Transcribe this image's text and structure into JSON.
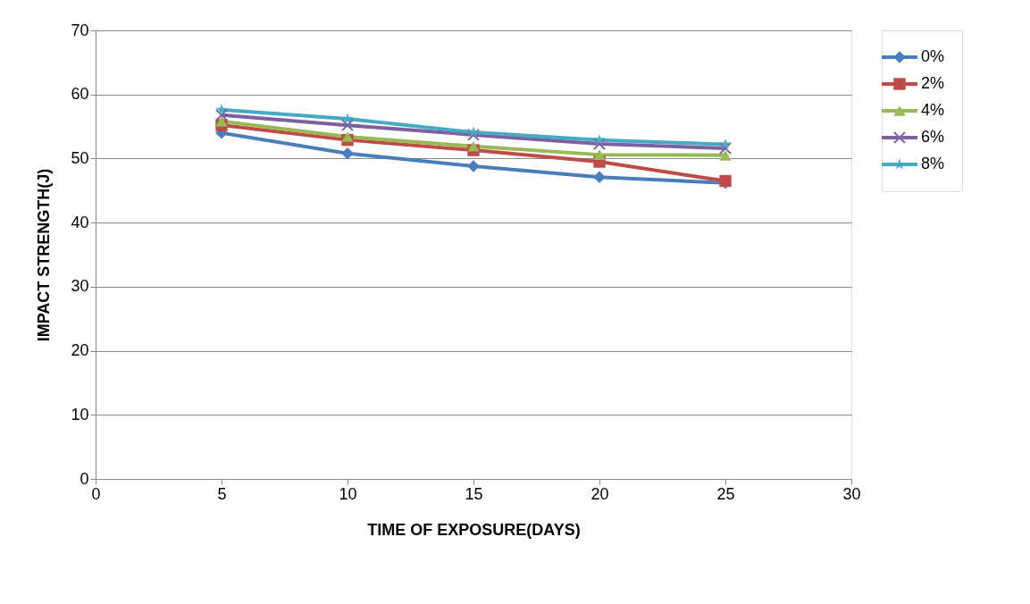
{
  "chart_data": {
    "type": "line",
    "xlabel": "TIME OF EXPOSURE(DAYS)",
    "ylabel": "IMPACT STRENGTH(J)",
    "x": [
      5,
      10,
      15,
      20,
      25
    ],
    "series": [
      {
        "name": "0%",
        "color": "#4a7ebb",
        "marker": "diamond",
        "values": [
          54.0,
          50.8,
          48.8,
          47.1,
          46.2
        ]
      },
      {
        "name": "2%",
        "color": "#be4b48",
        "marker": "square",
        "values": [
          55.2,
          52.9,
          51.3,
          49.5,
          46.5
        ]
      },
      {
        "name": "4%",
        "color": "#98b954",
        "marker": "triangle",
        "values": [
          55.8,
          53.4,
          51.9,
          50.6,
          50.5
        ]
      },
      {
        "name": "6%",
        "color": "#7d60a0",
        "marker": "cross",
        "values": [
          56.8,
          55.2,
          53.7,
          52.3,
          51.6
        ]
      },
      {
        "name": "8%",
        "color": "#46aac5",
        "marker": "star",
        "values": [
          57.6,
          56.2,
          54.1,
          52.9,
          52.2
        ]
      }
    ],
    "xlim": [
      0,
      30
    ],
    "xticks": [
      0,
      5,
      10,
      15,
      20,
      25,
      30
    ],
    "ylim": [
      0,
      70
    ],
    "yticks": [
      0,
      10,
      20,
      30,
      40,
      50,
      60,
      70
    ],
    "grid": "y",
    "legend": "right",
    "line_style": "solid"
  }
}
